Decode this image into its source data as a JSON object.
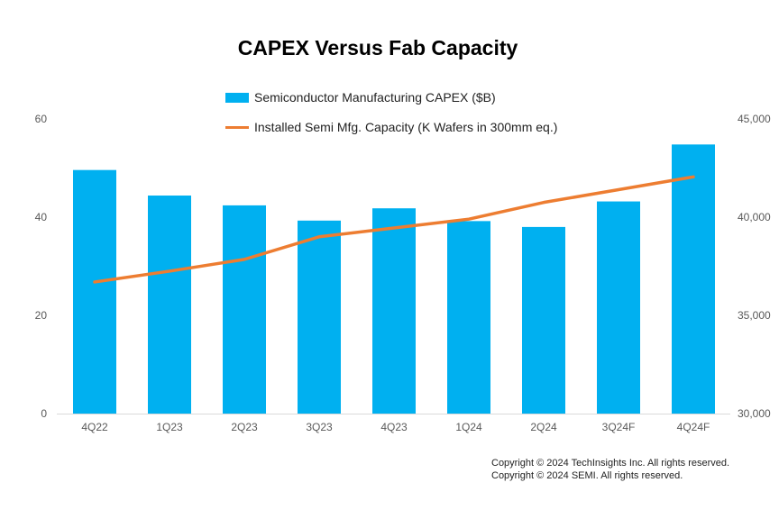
{
  "chart_data": {
    "type": "bar+line",
    "title": "CAPEX Versus Fab Capacity",
    "categories": [
      "4Q22",
      "1Q23",
      "2Q23",
      "3Q23",
      "4Q23",
      "1Q24",
      "2Q24",
      "3Q24F",
      "4Q24F"
    ],
    "series": [
      {
        "name": "Semiconductor Manufacturing CAPEX ($B)",
        "type": "bar",
        "axis": "left",
        "color": "#00B0F0",
        "values": [
          49.6,
          44.4,
          42.4,
          39.3,
          41.8,
          39.2,
          38.0,
          43.2,
          54.8
        ]
      },
      {
        "name": "Installed Semi Mfg. Capacity (K Wafers in 300mm eq.)",
        "type": "line",
        "axis": "right",
        "color": "#ED7D31",
        "values": [
          36700,
          37250,
          37850,
          39000,
          39450,
          39900,
          40750,
          41400,
          42050
        ]
      }
    ],
    "y_left": {
      "range": [
        0,
        60
      ],
      "ticks": [
        "0",
        "20",
        "40",
        "60"
      ]
    },
    "y_right": {
      "range": [
        30000,
        45000
      ],
      "ticks": [
        "30,000",
        "35,000",
        "40,000",
        "45,000"
      ]
    },
    "grid": false,
    "legend_placement": "top-center"
  },
  "copyright": [
    "Copyright © 2024 TechInsights Inc.  All rights reserved.",
    "Copyright © 2024 SEMI.  All rights reserved."
  ]
}
